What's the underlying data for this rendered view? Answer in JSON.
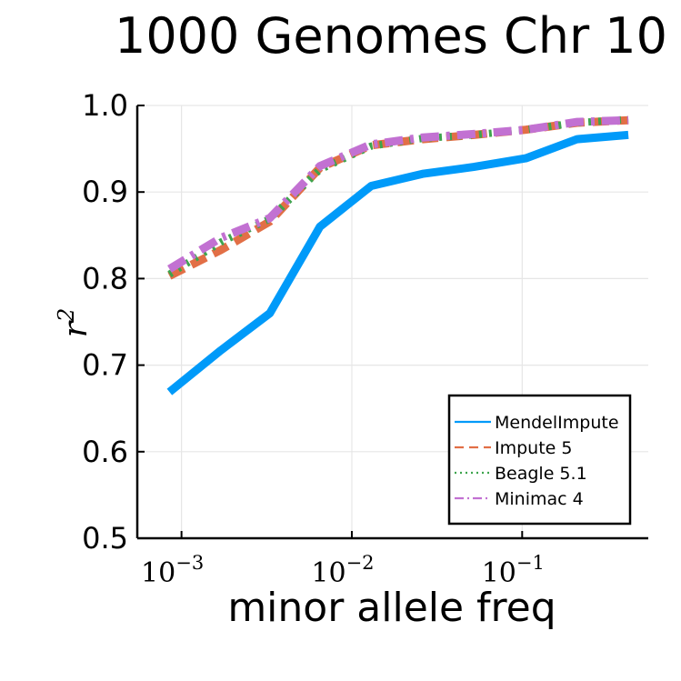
{
  "chart_data": {
    "type": "line",
    "title": "1000 Genomes Chr 10",
    "xlabel": "minor allele freq",
    "ylabel": "r",
    "ylabel_exponent": "2",
    "x_scale": "log10",
    "xlim": [
      0.00055,
      0.55
    ],
    "ylim": [
      0.5,
      1.0
    ],
    "x_ticks": [
      {
        "value": 0.001,
        "base": "10",
        "exponent": "−3"
      },
      {
        "value": 0.01,
        "base": "10",
        "exponent": "−2"
      },
      {
        "value": 0.1,
        "base": "10",
        "exponent": "−1"
      }
    ],
    "y_ticks": [
      "0.5",
      "0.6",
      "0.7",
      "0.8",
      "0.9",
      "1.0"
    ],
    "y_tick_values": [
      0.5,
      0.6,
      0.7,
      0.8,
      0.9,
      1.0
    ],
    "grid": true,
    "legend_position": "bottom-right",
    "x": [
      0.00085,
      0.0017,
      0.0033,
      0.0065,
      0.013,
      0.026,
      0.052,
      0.105,
      0.21,
      0.42
    ],
    "series": [
      {
        "name": "MendelImpute",
        "color": "#009af9",
        "dash": "solid",
        "values": [
          0.669,
          0.717,
          0.76,
          0.86,
          0.907,
          0.921,
          0.929,
          0.939,
          0.961,
          0.966
        ]
      },
      {
        "name": "Impute 5",
        "color": "#e26f46",
        "dash": "dash",
        "values": [
          0.803,
          0.833,
          0.866,
          0.928,
          0.954,
          0.961,
          0.966,
          0.972,
          0.98,
          0.983
        ]
      },
      {
        "name": "Beagle 5.1",
        "color": "#3da44d",
        "dash": "dot",
        "values": [
          0.805,
          0.842,
          0.869,
          0.926,
          0.953,
          0.962,
          0.966,
          0.972,
          0.98,
          0.984
        ]
      },
      {
        "name": "Minimac 4",
        "color": "#c271d2",
        "dash": "dashdot",
        "values": [
          0.811,
          0.847,
          0.87,
          0.93,
          0.955,
          0.963,
          0.967,
          0.972,
          0.981,
          0.983
        ]
      }
    ]
  }
}
